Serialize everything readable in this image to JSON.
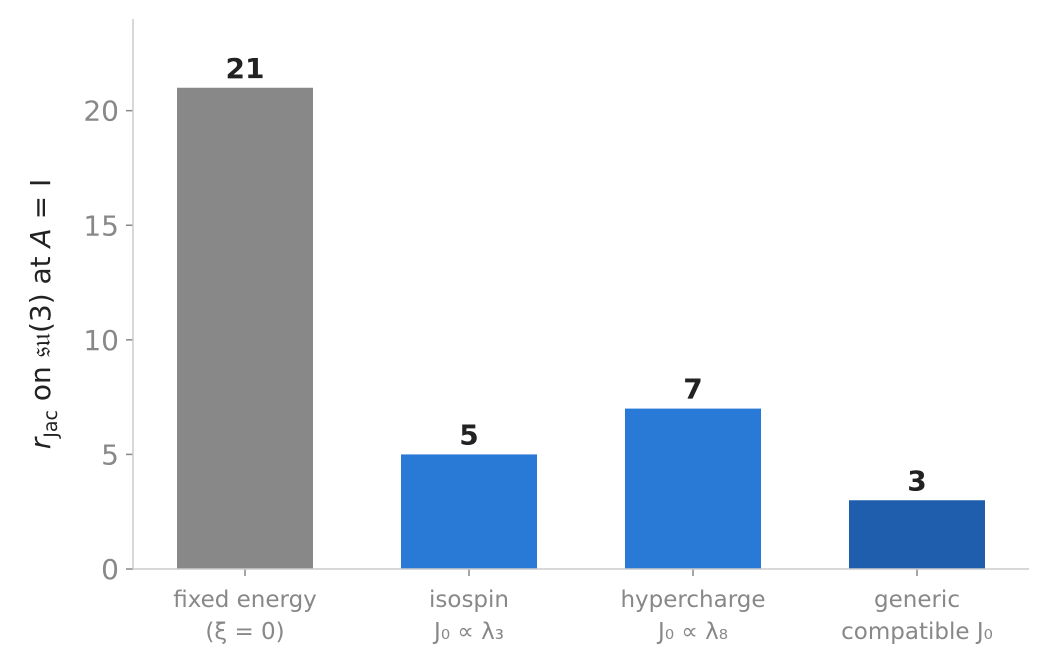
{
  "chart_data": {
    "type": "bar",
    "categories": [
      [
        "fixed energy",
        "(ξ = 0)"
      ],
      [
        "isospin",
        "J₀ ∝ λ₃"
      ],
      [
        "hypercharge",
        "J₀ ∝ λ₈"
      ],
      [
        "generic",
        "compatible J₀"
      ]
    ],
    "values": [
      21,
      5,
      7,
      3
    ],
    "value_labels": [
      "21",
      "5",
      "7",
      "3"
    ],
    "bar_colors": [
      "#888888",
      "#2979d6",
      "#2979d6",
      "#1f5eac"
    ],
    "ylabel": "r_Jac on 𝔰𝔲(3) at A = I",
    "ylabel_parts": {
      "r": "r",
      "sub": "Jac",
      "mid": " on 𝔰𝔲(3) at ",
      "italic": "A",
      "end": " = I"
    },
    "ylim": [
      0,
      24
    ],
    "yticks": [
      0,
      5,
      10,
      15,
      20
    ],
    "grid": false,
    "colors": {
      "axis": "#cccccc",
      "tick_label": "#888888",
      "value_label": "#222222",
      "ylabel": "#222222"
    }
  }
}
